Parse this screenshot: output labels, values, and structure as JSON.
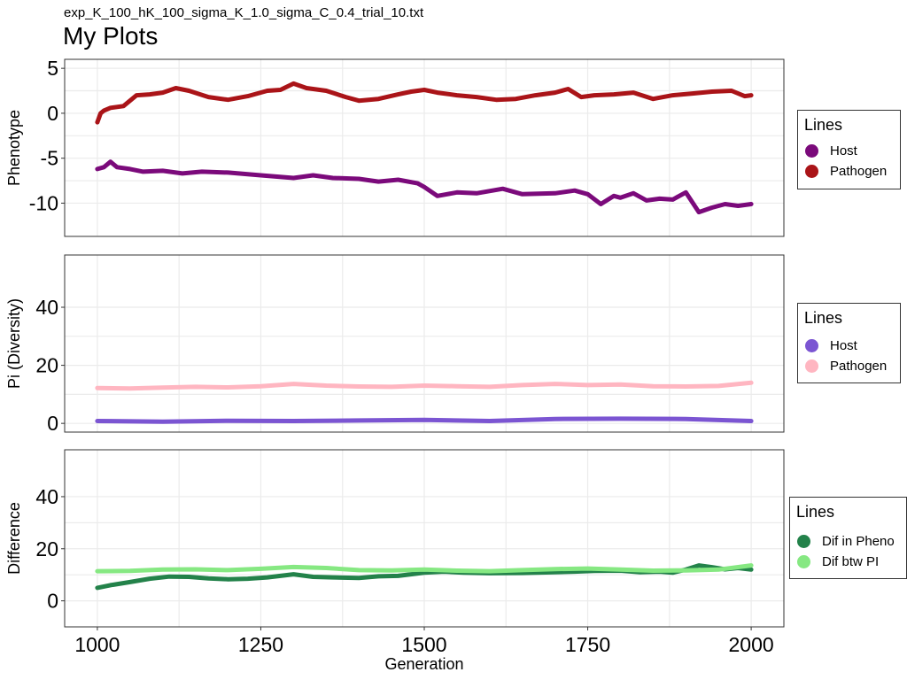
{
  "header": {
    "subtitle": "exp_K_100_hK_100_sigma_K_1.0_sigma_C_0.4_trial_10.txt",
    "title": "My Plots"
  },
  "chart_data": [
    {
      "type": "line",
      "ylabel": "Phenotype",
      "xlim": [
        950,
        2050
      ],
      "ylim": [
        -13.7,
        6.0
      ],
      "x_ticks": [
        1000,
        1250,
        1500,
        1750,
        2000
      ],
      "y_ticks": [
        5,
        0,
        -5,
        -10
      ],
      "grid": true,
      "legend": {
        "title": "Lines",
        "position": "right"
      },
      "series": [
        {
          "name": "Host",
          "color": "#7b0a7b",
          "x": [
            1000,
            1010,
            1020,
            1030,
            1050,
            1070,
            1100,
            1130,
            1160,
            1200,
            1250,
            1300,
            1330,
            1360,
            1400,
            1430,
            1460,
            1490,
            1500,
            1520,
            1550,
            1580,
            1620,
            1650,
            1700,
            1730,
            1750,
            1770,
            1790,
            1800,
            1820,
            1840,
            1860,
            1880,
            1900,
            1920,
            1940,
            1960,
            1980,
            2000
          ],
          "values": [
            -6.2,
            -6.0,
            -5.4,
            -6.0,
            -6.2,
            -6.5,
            -6.4,
            -6.7,
            -6.5,
            -6.6,
            -6.9,
            -7.2,
            -6.9,
            -7.2,
            -7.3,
            -7.6,
            -7.4,
            -7.8,
            -8.2,
            -9.2,
            -8.8,
            -8.9,
            -8.4,
            -9.0,
            -8.9,
            -8.6,
            -9.0,
            -10.1,
            -9.2,
            -9.4,
            -8.9,
            -9.7,
            -9.5,
            -9.6,
            -8.8,
            -11.0,
            -10.5,
            -10.1,
            -10.3,
            -10.1
          ]
        },
        {
          "name": "Pathogen",
          "color": "#aa1418",
          "x": [
            1000,
            1005,
            1010,
            1020,
            1040,
            1060,
            1080,
            1100,
            1120,
            1140,
            1170,
            1200,
            1230,
            1260,
            1280,
            1300,
            1320,
            1350,
            1380,
            1400,
            1430,
            1460,
            1480,
            1500,
            1520,
            1550,
            1580,
            1610,
            1640,
            1670,
            1700,
            1720,
            1740,
            1760,
            1790,
            1820,
            1850,
            1880,
            1910,
            1940,
            1970,
            1990,
            2000
          ],
          "values": [
            -1.0,
            0.0,
            0.3,
            0.6,
            0.8,
            2.0,
            2.1,
            2.3,
            2.8,
            2.5,
            1.8,
            1.5,
            1.9,
            2.5,
            2.6,
            3.3,
            2.8,
            2.5,
            1.8,
            1.4,
            1.6,
            2.1,
            2.4,
            2.6,
            2.3,
            2.0,
            1.8,
            1.5,
            1.6,
            2.0,
            2.3,
            2.7,
            1.8,
            2.0,
            2.1,
            2.3,
            1.6,
            2.0,
            2.2,
            2.4,
            2.5,
            1.9,
            2.0
          ]
        }
      ]
    },
    {
      "type": "line",
      "ylabel": "Pi (Diversity)",
      "xlim": [
        950,
        2050
      ],
      "ylim": [
        -3,
        58
      ],
      "x_ticks": [
        1000,
        1250,
        1500,
        1750,
        2000
      ],
      "y_ticks": [
        40,
        20,
        0
      ],
      "grid": true,
      "legend": {
        "title": "Lines",
        "position": "right"
      },
      "series": [
        {
          "name": "Host",
          "color": "#7b55d2",
          "x": [
            1000,
            1100,
            1200,
            1300,
            1400,
            1500,
            1600,
            1700,
            1800,
            1900,
            2000
          ],
          "values": [
            0.8,
            0.6,
            0.9,
            0.8,
            1.0,
            1.2,
            0.8,
            1.5,
            1.6,
            1.5,
            0.8
          ]
        },
        {
          "name": "Pathogen",
          "color": "#ffb6c1",
          "x": [
            1000,
            1050,
            1100,
            1150,
            1200,
            1250,
            1300,
            1350,
            1400,
            1450,
            1500,
            1550,
            1600,
            1650,
            1700,
            1750,
            1800,
            1850,
            1900,
            1950,
            2000
          ],
          "values": [
            12.2,
            12.0,
            12.3,
            12.6,
            12.4,
            12.8,
            13.6,
            13.0,
            12.7,
            12.6,
            13.0,
            12.8,
            12.6,
            13.2,
            13.6,
            13.2,
            13.4,
            12.8,
            12.7,
            12.9,
            14.0
          ]
        }
      ]
    },
    {
      "type": "line",
      "ylabel": "Difference",
      "xlabel": "Generation",
      "xlim": [
        950,
        2050
      ],
      "ylim": [
        -10,
        58
      ],
      "x_ticks": [
        1000,
        1250,
        1500,
        1750,
        2000
      ],
      "y_ticks": [
        40,
        20,
        0
      ],
      "grid": true,
      "legend": {
        "title": "Lines",
        "position": "right"
      },
      "series": [
        {
          "name": "Dif in Pheno",
          "color": "#23824a",
          "x": [
            1000,
            1020,
            1050,
            1080,
            1110,
            1140,
            1170,
            1200,
            1230,
            1260,
            1300,
            1330,
            1360,
            1400,
            1430,
            1460,
            1500,
            1530,
            1560,
            1600,
            1650,
            1700,
            1730,
            1760,
            1800,
            1830,
            1860,
            1880,
            1900,
            1920,
            1940,
            1960,
            1980,
            2000
          ],
          "values": [
            5.0,
            6.0,
            7.2,
            8.5,
            9.3,
            9.2,
            8.6,
            8.3,
            8.5,
            9.0,
            10.2,
            9.2,
            9.0,
            8.8,
            9.4,
            9.6,
            10.8,
            11.2,
            10.8,
            10.6,
            10.7,
            11.0,
            11.2,
            11.5,
            11.6,
            11.0,
            11.2,
            10.8,
            12.0,
            13.6,
            12.9,
            12.1,
            12.6,
            12.0
          ]
        },
        {
          "name": "Dif btw PI",
          "color": "#86e882",
          "x": [
            1000,
            1050,
            1100,
            1150,
            1200,
            1250,
            1300,
            1350,
            1400,
            1450,
            1500,
            1550,
            1600,
            1650,
            1700,
            1750,
            1800,
            1850,
            1900,
            1950,
            2000
          ],
          "values": [
            11.4,
            11.5,
            12.0,
            12.1,
            11.8,
            12.3,
            13.0,
            12.6,
            11.8,
            11.7,
            12.0,
            11.6,
            11.4,
            11.8,
            12.2,
            12.4,
            12.0,
            11.6,
            11.7,
            12.0,
            13.6
          ]
        }
      ]
    }
  ]
}
